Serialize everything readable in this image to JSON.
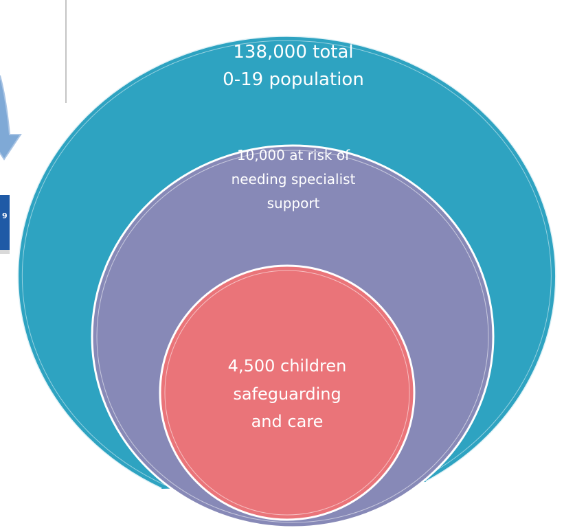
{
  "colors": {
    "outer_circle": "#2ea3c1",
    "middle_circle": "#8789b7",
    "inner_circle": "#ea7479",
    "arrow": "#7fa9d6",
    "badge": "#1f5aa6",
    "divider": "#8a8a8a"
  },
  "outer_circle": {
    "line1": "138,000 total",
    "line2": "0-19 population"
  },
  "middle_circle": {
    "line1": "10,000 at risk of",
    "line2": "needing specialist",
    "line3": "support"
  },
  "inner_circle": {
    "line1": "4,500 children",
    "line2": "safeguarding",
    "line3": "and care"
  },
  "left_fragment": {
    "icon": "curved-arrow-icon",
    "badge_text": "9"
  }
}
